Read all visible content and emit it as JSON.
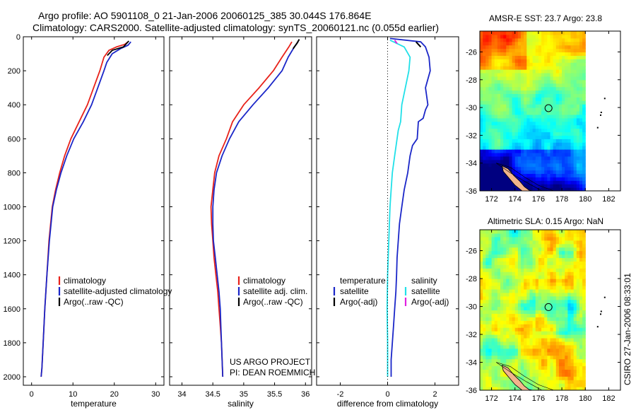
{
  "header": {
    "line1": "Argo profile: AO 5901108_0 21-Jan-2006 20060125_385 30.044S 176.864E",
    "line2": "Climatology: CARS2000. Satellite-adjusted climatology: synTS_20060121.nc (0.055d earlier)"
  },
  "credits": {
    "project": "US ARGO PROJECT",
    "pi": "PI: DEAN ROEMMICH",
    "stamp": "CSIRO 27-Jan-2006 08:33:01"
  },
  "colors": {
    "climatology": "#e8221a",
    "satellite": "#1a26c8",
    "argo": "#000000",
    "sat_diff_salinity": "#20e0e8",
    "argo_diff_salinity": "#e020e0"
  },
  "chart_data": [
    {
      "type": "line",
      "xlabel": "temperature",
      "ylim": [
        2050,
        0
      ],
      "xlim": [
        -2,
        32
      ],
      "xticks": [
        0,
        10,
        20,
        30
      ],
      "yticks": [
        0,
        200,
        400,
        600,
        800,
        1000,
        1200,
        1400,
        1600,
        1800,
        2000
      ],
      "legend": [
        "climatology",
        "satellite-adjusted climatology",
        "Argo(..raw -QC)"
      ],
      "series": [
        {
          "name": "climatology",
          "color": "#e8221a",
          "points": [
            [
              23.3,
              30
            ],
            [
              22.5,
              45
            ],
            [
              20.5,
              60
            ],
            [
              18.7,
              80
            ],
            [
              17.5,
              120
            ],
            [
              16.5,
              200
            ],
            [
              15,
              300
            ],
            [
              13.5,
              400
            ],
            [
              11.5,
              500
            ],
            [
              9.5,
              600
            ],
            [
              8,
              700
            ],
            [
              6.8,
              800
            ],
            [
              5.8,
              900
            ],
            [
              5,
              1000
            ],
            [
              4.2,
              1200
            ],
            [
              3.7,
              1400
            ],
            [
              3.2,
              1600
            ],
            [
              2.8,
              1800
            ],
            [
              2.5,
              1950
            ],
            [
              2.3,
              2000
            ]
          ]
        },
        {
          "name": "satellite-adjusted climatology",
          "color": "#1a26c8",
          "points": [
            [
              24,
              30
            ],
            [
              23.3,
              50
            ],
            [
              21.5,
              70
            ],
            [
              19.5,
              100
            ],
            [
              18.2,
              150
            ],
            [
              17.5,
              200
            ],
            [
              16,
              300
            ],
            [
              14.5,
              400
            ],
            [
              12.5,
              500
            ],
            [
              10.2,
              600
            ],
            [
              8.5,
              700
            ],
            [
              7.1,
              800
            ],
            [
              6,
              900
            ],
            [
              5.1,
              1000
            ],
            [
              4.3,
              1200
            ],
            [
              3.7,
              1400
            ],
            [
              3.2,
              1600
            ],
            [
              2.8,
              1800
            ],
            [
              2.5,
              1950
            ],
            [
              2.3,
              2000
            ]
          ]
        },
        {
          "name": "Argo(..raw -QC)",
          "color": "#000000",
          "points": [
            [
              23.5,
              25
            ],
            [
              22.2,
              60
            ],
            [
              19.5,
              80
            ],
            [
              18.3,
              110
            ]
          ]
        }
      ]
    },
    {
      "type": "line",
      "xlabel": "salinity",
      "ylim": [
        2050,
        0
      ],
      "xlim": [
        33.8,
        36.1
      ],
      "xticks": [
        34,
        34.5,
        35,
        35.5,
        36
      ],
      "yticks": [
        0,
        200,
        400,
        600,
        800,
        1000,
        1200,
        1400,
        1600,
        1800,
        2000
      ],
      "legend": [
        "climatology",
        "satellite adj. clim.",
        "Argo(..raw -QC)"
      ],
      "series": [
        {
          "name": "climatology",
          "color": "#e8221a",
          "points": [
            [
              35.78,
              30
            ],
            [
              35.73,
              60
            ],
            [
              35.62,
              120
            ],
            [
              35.48,
              200
            ],
            [
              35.25,
              300
            ],
            [
              35.0,
              400
            ],
            [
              34.82,
              500
            ],
            [
              34.72,
              600
            ],
            [
              34.6,
              700
            ],
            [
              34.53,
              800
            ],
            [
              34.5,
              900
            ],
            [
              34.47,
              1000
            ],
            [
              34.48,
              1100
            ],
            [
              34.5,
              1200
            ],
            [
              34.52,
              1300
            ],
            [
              34.55,
              1400
            ],
            [
              34.58,
              1500
            ],
            [
              34.6,
              1600
            ],
            [
              34.62,
              1700
            ],
            [
              34.64,
              1800
            ],
            [
              34.65,
              1900
            ],
            [
              34.66,
              2000
            ]
          ]
        },
        {
          "name": "satellite adj. clim.",
          "color": "#1a26c8",
          "points": [
            [
              35.88,
              30
            ],
            [
              35.82,
              60
            ],
            [
              35.72,
              120
            ],
            [
              35.62,
              200
            ],
            [
              35.4,
              300
            ],
            [
              35.15,
              400
            ],
            [
              34.92,
              500
            ],
            [
              34.77,
              600
            ],
            [
              34.65,
              700
            ],
            [
              34.56,
              800
            ],
            [
              34.52,
              900
            ],
            [
              34.5,
              1000
            ],
            [
              34.5,
              1100
            ],
            [
              34.51,
              1200
            ],
            [
              34.54,
              1300
            ],
            [
              34.57,
              1400
            ],
            [
              34.6,
              1500
            ],
            [
              34.62,
              1600
            ],
            [
              34.63,
              1700
            ],
            [
              34.64,
              1800
            ],
            [
              34.65,
              1900
            ],
            [
              34.66,
              2000
            ]
          ]
        },
        {
          "name": "Argo(..raw -QC)",
          "color": "#000000",
          "points": [
            [
              35.9,
              15
            ],
            [
              35.86,
              40
            ],
            [
              35.8,
              70
            ]
          ]
        }
      ]
    },
    {
      "type": "line",
      "xlabel": "difference from climatology",
      "ylim": [
        2050,
        0
      ],
      "xlim": [
        -3.0,
        3.0
      ],
      "xticks": [
        -2,
        0,
        2
      ],
      "yticks": [
        0,
        200,
        400,
        600,
        800,
        1000,
        1200,
        1400,
        1600,
        1800,
        2000
      ],
      "legend_left_title": "temperature",
      "legend_right_title": "salinity",
      "legend": [
        "satellite",
        "Argo(-adj)",
        "satellite",
        "Argo(-adj)"
      ],
      "series": [
        {
          "name": "temperature satellite",
          "color": "#1a26c8",
          "points": [
            [
              0.1,
              10
            ],
            [
              1.4,
              30
            ],
            [
              1.6,
              60
            ],
            [
              1.75,
              120
            ],
            [
              1.8,
              200
            ],
            [
              1.6,
              300
            ],
            [
              1.7,
              400
            ],
            [
              1.6,
              430
            ],
            [
              1.5,
              480
            ],
            [
              1.3,
              500
            ],
            [
              1.25,
              600
            ],
            [
              1.05,
              640
            ],
            [
              0.95,
              700
            ],
            [
              0.85,
              800
            ],
            [
              0.7,
              900
            ],
            [
              0.6,
              1000
            ],
            [
              0.5,
              1100
            ],
            [
              0.45,
              1200
            ],
            [
              0.4,
              1300
            ],
            [
              0.38,
              1400
            ],
            [
              0.35,
              1500
            ],
            [
              0.3,
              1600
            ],
            [
              0.25,
              1700
            ],
            [
              0.2,
              1800
            ],
            [
              0.15,
              1900
            ],
            [
              0.15,
              2000
            ]
          ]
        },
        {
          "name": "salinity satellite",
          "color": "#20e0e8",
          "points": [
            [
              0.1,
              20
            ],
            [
              0.7,
              60
            ],
            [
              0.95,
              120
            ],
            [
              0.9,
              200
            ],
            [
              0.75,
              300
            ],
            [
              0.6,
              400
            ],
            [
              0.55,
              500
            ],
            [
              0.45,
              550
            ],
            [
              0.4,
              600
            ],
            [
              0.3,
              700
            ],
            [
              0.2,
              800
            ],
            [
              0.15,
              900
            ],
            [
              0.1,
              1000
            ],
            [
              0.05,
              1200
            ],
            [
              0.0,
              1400
            ],
            [
              -0.02,
              1600
            ],
            [
              0.0,
              1800
            ],
            [
              0.0,
              2000
            ]
          ]
        },
        {
          "name": "temperature Argo(-adj)",
          "color": "#000000",
          "points": [
            [
              1.2,
              30
            ],
            [
              1.4,
              60
            ]
          ]
        },
        {
          "name": "salinity Argo(-adj)",
          "color": "#e020e0",
          "points": [
            [
              0.3,
              20
            ],
            [
              0.4,
              40
            ]
          ]
        }
      ]
    },
    {
      "type": "heatmap",
      "title": "AMSR-E SST: 23.7 Argo: 23.8",
      "xlim": [
        171,
        183
      ],
      "ylim": [
        -36,
        -24.5
      ],
      "xticks": [
        172,
        174,
        176,
        178,
        180,
        182
      ],
      "yticks": [
        -26,
        -28,
        -30,
        -32,
        -34,
        -36
      ],
      "data_extent_lon": [
        171,
        180
      ],
      "float_position": [
        176.864,
        -30.044
      ]
    },
    {
      "type": "heatmap",
      "title": "Altimetric SLA: 0.15 Argo: NaN",
      "xlim": [
        171,
        183
      ],
      "ylim": [
        -36,
        -24.5
      ],
      "xticks": [
        172,
        174,
        176,
        178,
        180,
        182
      ],
      "yticks": [
        -26,
        -28,
        -30,
        -32,
        -34,
        -36
      ],
      "data_extent_lon": [
        171,
        180
      ],
      "float_position": [
        176.864,
        -30.044
      ]
    }
  ]
}
